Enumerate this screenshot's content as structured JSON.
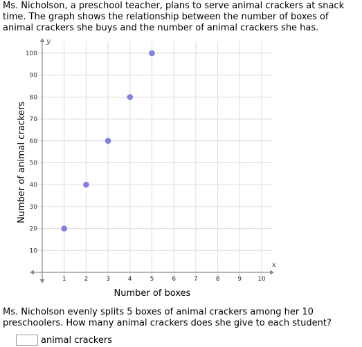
{
  "problem": {
    "intro": "Ms. Nicholson, a preschool teacher, plans to serve animal crackers at snack time. The graph shows the relationship between the number of boxes of animal crackers she buys and the number of animal crackers she has.",
    "question": "Ms. Nicholson evenly splits 5 boxes of animal crackers among her 10 preschoolers. How many animal crackers does she give to each student?",
    "answer": {
      "value": "",
      "placeholder": "",
      "unit_label": "animal crackers"
    }
  },
  "chart_data": {
    "type": "scatter",
    "x_var": "x",
    "y_var": "y",
    "xlabel": "Number of boxes",
    "ylabel": "Number of animal crackers",
    "xlim": [
      0,
      10
    ],
    "ylim": [
      0,
      100
    ],
    "x_ticks": [
      1,
      2,
      3,
      4,
      5,
      6,
      7,
      8,
      9,
      10
    ],
    "y_ticks": [
      10,
      20,
      30,
      40,
      50,
      60,
      70,
      80,
      90,
      100
    ],
    "grid": true,
    "point_color": "#8181e0",
    "points": [
      {
        "x": 1,
        "y": 20
      },
      {
        "x": 2,
        "y": 40
      },
      {
        "x": 3,
        "y": 60
      },
      {
        "x": 4,
        "y": 80
      },
      {
        "x": 5,
        "y": 100
      }
    ]
  }
}
